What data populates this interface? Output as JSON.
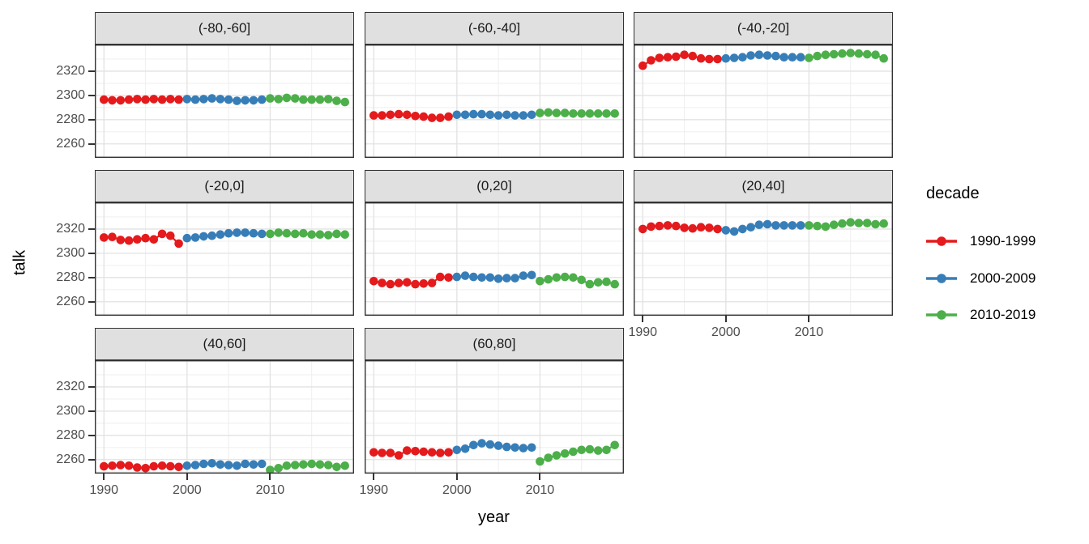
{
  "figure": {
    "x_axis_title": "year",
    "y_axis_title": "talk"
  },
  "legend": {
    "title": "decade",
    "entries": [
      {
        "label": "1990-1999",
        "color": "#E41A1C"
      },
      {
        "label": "2000-2009",
        "color": "#377EB8"
      },
      {
        "label": "2010-2019",
        "color": "#4DAF4A"
      }
    ]
  },
  "chart_data": {
    "type": "scatter",
    "title": "",
    "xlabel": "year",
    "ylabel": "talk",
    "legend_title": "decade",
    "legend_position": "right",
    "grid": true,
    "x_ticks": [
      1990,
      2000,
      2010
    ],
    "x_minor": [
      1995,
      2005,
      2015
    ],
    "y_ticks": [
      2260,
      2280,
      2300,
      2320
    ],
    "y_minor": [
      2250,
      2270,
      2290,
      2310,
      2330
    ],
    "x_domain": [
      1988.9,
      2020.1
    ],
    "y_domain": [
      2248.5,
      2342
    ],
    "series_meta": [
      {
        "name": "1990-1999",
        "start_year": 1990,
        "color": "#E41A1C"
      },
      {
        "name": "2000-2009",
        "start_year": 2000,
        "color": "#377EB8"
      },
      {
        "name": "2010-2019",
        "start_year": 2010,
        "color": "#4DAF4A"
      }
    ],
    "facets": [
      {
        "label": "(-80,-60]",
        "show_y": true,
        "show_x": false,
        "values": {
          "1990-1999": [
            2296.5,
            2296,
            2296,
            2296.5,
            2297,
            2296.5,
            2297,
            2296.5,
            2297,
            2296.5
          ],
          "2000-2009": [
            2297,
            2296.5,
            2297,
            2297.5,
            2297,
            2296.5,
            2295.5,
            2296,
            2296,
            2296.5
          ],
          "2010-2019": [
            2297.5,
            2297,
            2298,
            2297.5,
            2296.5,
            2296.5,
            2296.5,
            2297,
            2295.5,
            2294.5
          ]
        }
      },
      {
        "label": "(-60,-40]",
        "show_y": false,
        "show_x": false,
        "values": {
          "1990-1999": [
            2283.5,
            2283.5,
            2284,
            2284.5,
            2284,
            2283,
            2282.5,
            2281.5,
            2281.5,
            2282.5
          ],
          "2000-2009": [
            2284,
            2284,
            2284.5,
            2284.5,
            2284,
            2283.5,
            2284,
            2283.5,
            2283.5,
            2284
          ],
          "2010-2019": [
            2285.5,
            2286,
            2285.5,
            2285.5,
            2285,
            2285,
            2285,
            2285,
            2285,
            2285
          ]
        }
      },
      {
        "label": "(-40,-20]",
        "show_y": false,
        "show_x": false,
        "values": {
          "1990-1999": [
            2324.5,
            2329,
            2331,
            2331.5,
            2332,
            2333.5,
            2332.5,
            2330.5,
            2330,
            2330
          ],
          "2000-2009": [
            2330.5,
            2331,
            2331.5,
            2333,
            2333.5,
            2333,
            2332.5,
            2331.5,
            2331.5,
            2331.5
          ],
          "2010-2019": [
            2331,
            2332.5,
            2333.5,
            2334,
            2334.5,
            2335,
            2334.5,
            2334,
            2333.5,
            2330.5
          ]
        }
      },
      {
        "label": "(-20,0]",
        "show_y": true,
        "show_x": false,
        "values": {
          "1990-1999": [
            2313,
            2313.5,
            2311,
            2310.5,
            2311.5,
            2312.5,
            2311.5,
            2316,
            2314.5,
            2308
          ],
          "2000-2009": [
            2312.5,
            2313,
            2314,
            2314.5,
            2315.5,
            2316.5,
            2317,
            2317,
            2316.5,
            2316
          ],
          "2010-2019": [
            2316,
            2317,
            2316.5,
            2316,
            2316.5,
            2315.5,
            2315.5,
            2315,
            2316,
            2315.5
          ]
        }
      },
      {
        "label": "(0,20]",
        "show_y": false,
        "show_x": false,
        "values": {
          "1990-1999": [
            2277,
            2275.5,
            2274.5,
            2275.5,
            2276,
            2274.5,
            2275,
            2275.5,
            2280.5,
            2280
          ],
          "2000-2009": [
            2280.5,
            2281.5,
            2280.5,
            2280,
            2280,
            2279,
            2279.5,
            2279.5,
            2281.5,
            2282
          ],
          "2010-2019": [
            2277,
            2278.5,
            2280,
            2280.5,
            2280,
            2278,
            2274.5,
            2276,
            2276.5,
            2274.5
          ]
        }
      },
      {
        "label": "(20,40]",
        "show_y": false,
        "show_x": true,
        "values": {
          "1990-1999": [
            2320,
            2322,
            2322.5,
            2323,
            2322.5,
            2321,
            2320.5,
            2321.5,
            2321,
            2320
          ],
          "2000-2009": [
            2319,
            2318,
            2320,
            2321.5,
            2323.5,
            2324,
            2323,
            2323,
            2323,
            2323
          ],
          "2010-2019": [
            2323,
            2322.5,
            2322,
            2323.5,
            2324.5,
            2325.5,
            2325,
            2325,
            2324,
            2324.5
          ]
        }
      },
      {
        "label": "(40,60]",
        "show_y": true,
        "show_x": true,
        "values": {
          "1990-1999": [
            2254.5,
            2255,
            2255.5,
            2255,
            2253.5,
            2253,
            2254.5,
            2255,
            2254.5,
            2254
          ],
          "2000-2009": [
            2255,
            2255.5,
            2256.5,
            2257,
            2256,
            2255.5,
            2255,
            2256.5,
            2256,
            2256.5
          ],
          "2010-2019": [
            2251.5,
            2253,
            2255,
            2255.5,
            2256,
            2256.5,
            2256,
            2255.5,
            2254,
            2255
          ]
        }
      },
      {
        "label": "(60,80]",
        "show_y": false,
        "show_x": true,
        "values": {
          "1990-1999": [
            2266,
            2265.5,
            2265.5,
            2263.5,
            2267.5,
            2267,
            2266.5,
            2266,
            2265.5,
            2266
          ],
          "2000-2009": [
            2268,
            2269,
            2272,
            2273.5,
            2272.5,
            2271.5,
            2270.5,
            2270,
            2269.5,
            2270
          ],
          "2010-2019": [
            2258.5,
            2261.5,
            2263.5,
            2265,
            2266.5,
            2268,
            2268.5,
            2267.5,
            2268,
            2272
          ]
        }
      }
    ]
  }
}
